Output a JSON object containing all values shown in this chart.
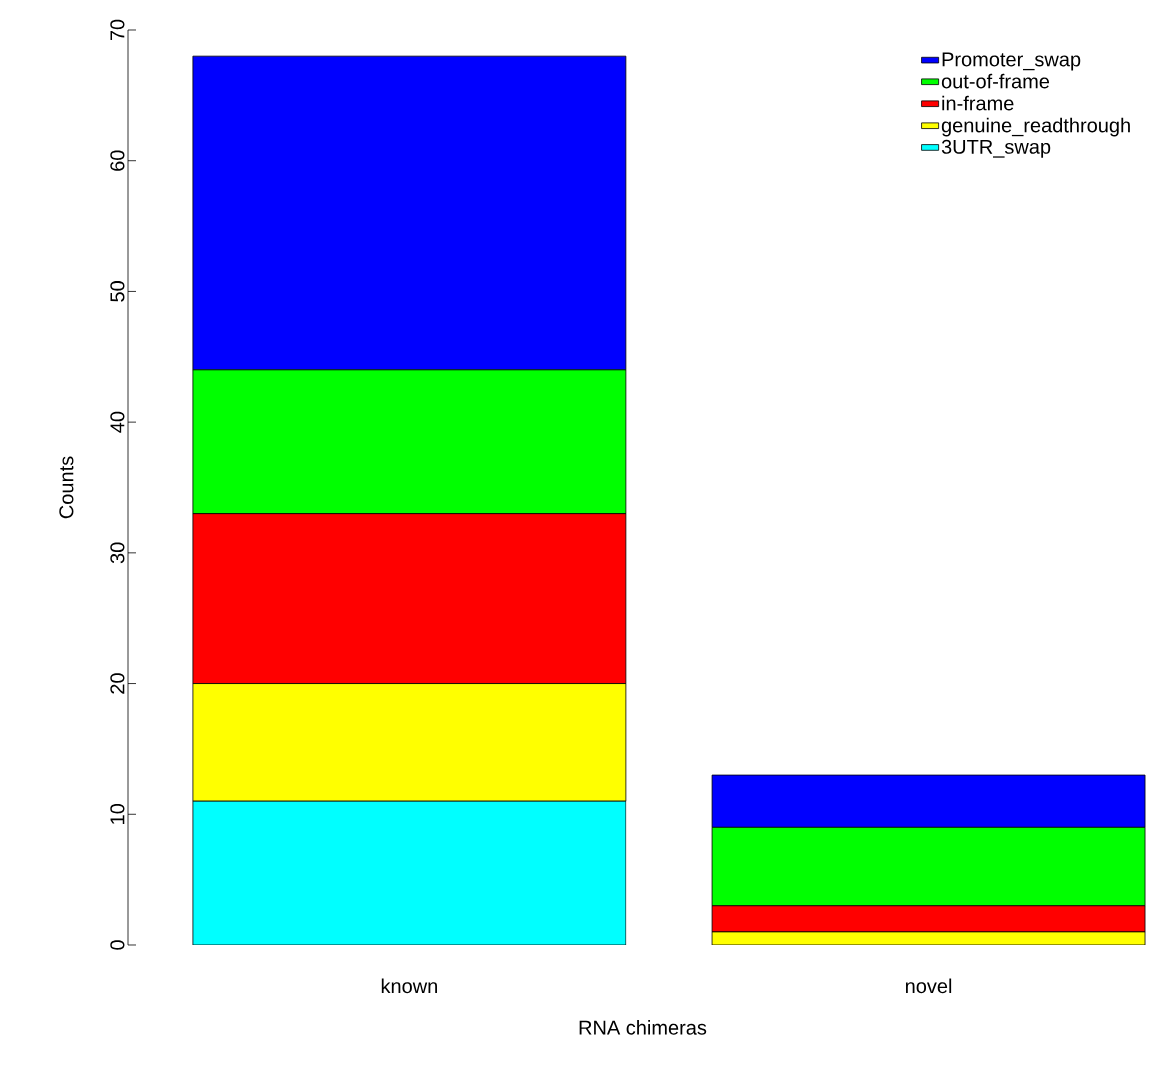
{
  "chart_data": {
    "type": "bar",
    "stacked": true,
    "xlabel": "RNA chimeras",
    "ylabel": "Counts",
    "categories": [
      "known",
      "novel"
    ],
    "series": [
      {
        "name": "3UTR_swap",
        "color": "#00ffff",
        "values": [
          11,
          0
        ]
      },
      {
        "name": "genuine_readthrough",
        "color": "#ffff00",
        "values": [
          9,
          1
        ]
      },
      {
        "name": "in-frame",
        "color": "#ff0000",
        "values": [
          13,
          2
        ]
      },
      {
        "name": "out-of-frame",
        "color": "#00ff00",
        "values": [
          11,
          6
        ]
      },
      {
        "name": "Promoter_swap",
        "color": "#0000ff",
        "values": [
          24,
          4
        ]
      }
    ],
    "ylim": [
      0,
      70
    ],
    "yticks": [
      0,
      10,
      20,
      30,
      40,
      50,
      60,
      70
    ],
    "grid": false,
    "legend": "top right"
  }
}
